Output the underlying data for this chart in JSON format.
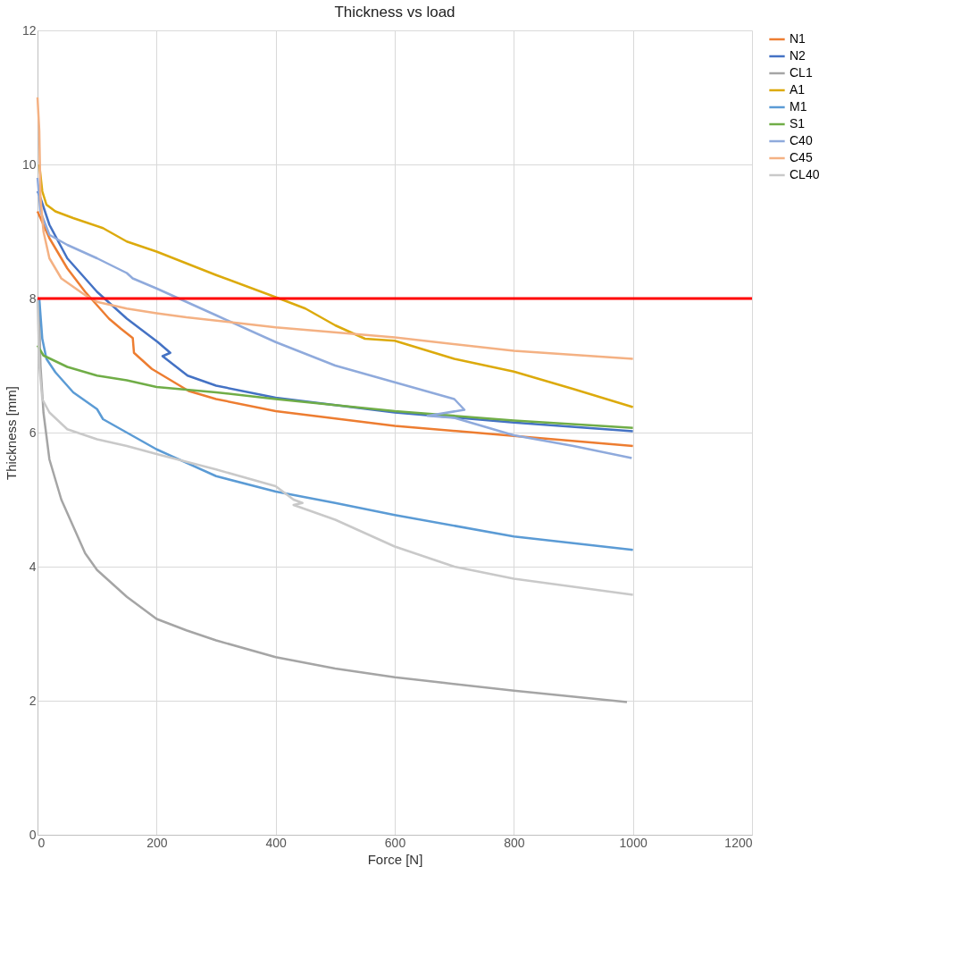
{
  "chart_data": {
    "type": "line",
    "title": "Thickness vs load",
    "xlabel": "Force [N]",
    "ylabel": "Thickness [mm]",
    "xlim": [
      0,
      1200
    ],
    "xticks": [
      0,
      200,
      400,
      600,
      800,
      1000,
      1200
    ],
    "ylim": [
      0,
      12
    ],
    "yticks": [
      0,
      2,
      4,
      6,
      8,
      10,
      12
    ],
    "grid": true,
    "legend": "right",
    "marker": "none",
    "line_style": "solid",
    "ref_lines": [
      {
        "axis": "y",
        "value": 8,
        "color": "#ff0000"
      }
    ],
    "series": [
      {
        "name": "N1",
        "color": "#ed7d31",
        "x": [
          0,
          5,
          20,
          50,
          80,
          100,
          120,
          140,
          160,
          162,
          192,
          254,
          300,
          400,
          600,
          800,
          1000
        ],
        "values": [
          9.3,
          9.2,
          8.9,
          8.45,
          8.1,
          7.9,
          7.7,
          7.55,
          7.41,
          7.19,
          6.95,
          6.62,
          6.5,
          6.32,
          6.1,
          5.95,
          5.8
        ]
      },
      {
        "name": "N2",
        "color": "#4472c4",
        "x": [
          0,
          5,
          20,
          50,
          100,
          150,
          202,
          223,
          210,
          252,
          300,
          400,
          600,
          800,
          1000
        ],
        "values": [
          9.6,
          9.5,
          9.1,
          8.6,
          8.1,
          7.7,
          7.35,
          7.19,
          7.14,
          6.85,
          6.7,
          6.52,
          6.3,
          6.15,
          6.02
        ]
      },
      {
        "name": "CL1",
        "color": "#a5a5a5",
        "x": [
          2,
          5,
          10,
          20,
          40,
          60,
          80,
          100,
          150,
          200,
          250,
          300,
          400,
          500,
          600,
          800,
          990
        ],
        "values": [
          8.0,
          7.0,
          6.3,
          5.6,
          5.0,
          4.6,
          4.2,
          3.95,
          3.55,
          3.22,
          3.05,
          2.9,
          2.65,
          2.48,
          2.35,
          2.15,
          1.98
        ]
      },
      {
        "name": "A1",
        "color": "#dcaa0c",
        "x": [
          3,
          8,
          15,
          30,
          60,
          110,
          150,
          200,
          300,
          400,
          450,
          500,
          550,
          600,
          700,
          800,
          900,
          1000
        ],
        "values": [
          10.0,
          9.6,
          9.4,
          9.3,
          9.2,
          9.05,
          8.85,
          8.7,
          8.35,
          8.02,
          7.85,
          7.6,
          7.4,
          7.37,
          7.1,
          6.91,
          6.65,
          6.38
        ]
      },
      {
        "name": "M1",
        "color": "#5b9bd5",
        "x": [
          3,
          8,
          15,
          30,
          60,
          100,
          110,
          150,
          200,
          300,
          400,
          500,
          600,
          800,
          1000
        ],
        "values": [
          8.0,
          7.4,
          7.1,
          6.9,
          6.6,
          6.35,
          6.2,
          6.0,
          5.75,
          5.35,
          5.12,
          4.95,
          4.77,
          4.45,
          4.25
        ]
      },
      {
        "name": "S1",
        "color": "#70ad47",
        "x": [
          0,
          10,
          50,
          100,
          150,
          200,
          300,
          400,
          600,
          800,
          1000
        ],
        "values": [
          7.3,
          7.15,
          6.98,
          6.85,
          6.78,
          6.68,
          6.6,
          6.5,
          6.32,
          6.18,
          6.07
        ]
      },
      {
        "name": "C40",
        "color": "#8faadc",
        "x": [
          0,
          5,
          20,
          50,
          100,
          150,
          160,
          200,
          300,
          400,
          500,
          600,
          700,
          717,
          655,
          700,
          800,
          900,
          998
        ],
        "values": [
          9.8,
          9.3,
          8.95,
          8.8,
          8.6,
          8.38,
          8.3,
          8.15,
          7.75,
          7.35,
          7.0,
          6.75,
          6.5,
          6.34,
          6.25,
          6.22,
          5.96,
          5.8,
          5.62
        ]
      },
      {
        "name": "C45",
        "color": "#f4b183",
        "x": [
          0,
          3,
          5,
          10,
          20,
          40,
          80,
          100,
          150,
          200,
          250,
          400,
          600,
          800,
          1000
        ],
        "values": [
          11.0,
          10.5,
          9.5,
          9.0,
          8.6,
          8.3,
          8.05,
          7.95,
          7.85,
          7.78,
          7.72,
          7.57,
          7.42,
          7.22,
          7.1
        ]
      },
      {
        "name": "CL40",
        "color": "#c9c9c9",
        "x": [
          0,
          3,
          8,
          20,
          50,
          100,
          150,
          200,
          300,
          400,
          430,
          445,
          430,
          500,
          600,
          700,
          800,
          1000
        ],
        "values": [
          8.0,
          7.0,
          6.5,
          6.3,
          6.05,
          5.9,
          5.8,
          5.68,
          5.45,
          5.2,
          5.0,
          4.95,
          4.92,
          4.7,
          4.3,
          4.0,
          3.82,
          3.58
        ]
      }
    ]
  }
}
